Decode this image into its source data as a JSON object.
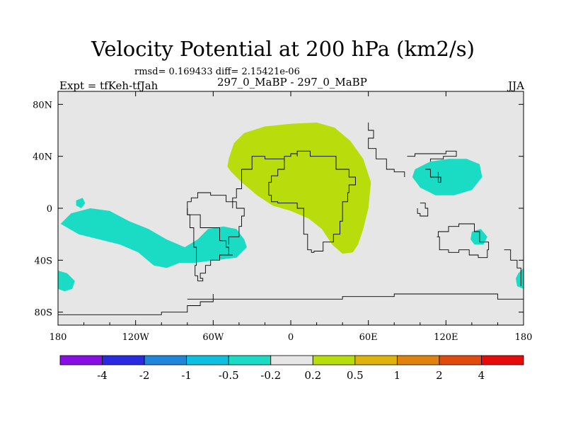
{
  "chart_data": {
    "type": "heatmap",
    "title": "Velocity Potential at 200 hPa (km2/s)",
    "stats": "rmsd= 0.169433 diff= 2.15421e-06",
    "experiment": "Expt = tfKeh-tfJah",
    "subtitle": "297_0_MaBP - 297_0_MaBP",
    "season": "JJA",
    "x_ticks": [
      {
        "value": -180,
        "label": "180"
      },
      {
        "value": -120,
        "label": "120W"
      },
      {
        "value": -60,
        "label": "60W"
      },
      {
        "value": 0,
        "label": "0"
      },
      {
        "value": 60,
        "label": "60E"
      },
      {
        "value": 120,
        "label": "120E"
      },
      {
        "value": 180,
        "label": "180"
      }
    ],
    "y_ticks": [
      {
        "value": 80,
        "label": "80N"
      },
      {
        "value": 40,
        "label": "40N"
      },
      {
        "value": 0,
        "label": "0"
      },
      {
        "value": -40,
        "label": "40S"
      },
      {
        "value": -80,
        "label": "80S"
      }
    ],
    "xlim": [
      -180,
      180
    ],
    "ylim": [
      -90,
      90
    ],
    "colorbar": {
      "colors": [
        "#8a0de6",
        "#2a2ae0",
        "#1f86da",
        "#0dbfe0",
        "#1adcc4",
        "#e6e6e6",
        "#b8dc0c",
        "#deb40c",
        "#e0820c",
        "#e04a0c",
        "#e60c0c"
      ],
      "labels": [
        "-4",
        "-2",
        "-1",
        "-0.5",
        "-0.2",
        "0.2",
        "0.5",
        "1",
        "2",
        "4"
      ]
    },
    "colors": {
      "background": "#e6e6e6",
      "positive": "#b8dc0c",
      "negative": "#1adcc4"
    },
    "regions": [
      {
        "sign": "positive",
        "lonlat": [
          [
            -48,
            38
          ],
          [
            -44,
            50
          ],
          [
            -36,
            58
          ],
          [
            -20,
            63
          ],
          [
            0,
            65
          ],
          [
            20,
            66
          ],
          [
            34,
            62
          ],
          [
            46,
            52
          ],
          [
            56,
            38
          ],
          [
            62,
            20
          ],
          [
            60,
            0
          ],
          [
            56,
            -16
          ],
          [
            52,
            -28
          ],
          [
            48,
            -34
          ],
          [
            40,
            -35
          ],
          [
            32,
            -28
          ],
          [
            24,
            -16
          ],
          [
            14,
            -8
          ],
          [
            0,
            -2
          ],
          [
            -14,
            2
          ],
          [
            -26,
            10
          ],
          [
            -38,
            20
          ],
          [
            -46,
            28
          ],
          [
            -49,
            32
          ]
        ]
      },
      {
        "sign": "negative",
        "lonlat": [
          [
            -178,
            -12
          ],
          [
            -170,
            -4
          ],
          [
            -155,
            0
          ],
          [
            -140,
            -2
          ],
          [
            -125,
            -10
          ],
          [
            -110,
            -16
          ],
          [
            -96,
            -24
          ],
          [
            -82,
            -30
          ],
          [
            -72,
            -24
          ],
          [
            -64,
            -16
          ],
          [
            -52,
            -14
          ],
          [
            -42,
            -16
          ],
          [
            -36,
            -24
          ],
          [
            -34,
            -30
          ],
          [
            -42,
            -38
          ],
          [
            -58,
            -40
          ],
          [
            -74,
            -42
          ],
          [
            -86,
            -42
          ],
          [
            -96,
            -46
          ],
          [
            -106,
            -44
          ],
          [
            -118,
            -34
          ],
          [
            -132,
            -28
          ],
          [
            -148,
            -24
          ],
          [
            -164,
            -20
          ]
        ]
      },
      {
        "sign": "negative",
        "lonlat": [
          [
            -166,
            6
          ],
          [
            -161,
            8
          ],
          [
            -159,
            4
          ],
          [
            -162,
            0
          ],
          [
            -166,
            2
          ]
        ]
      },
      {
        "sign": "negative",
        "lonlat": [
          [
            -180,
            -48
          ],
          [
            -173,
            -50
          ],
          [
            -167,
            -56
          ],
          [
            -169,
            -62
          ],
          [
            -175,
            -64
          ],
          [
            -180,
            -62
          ]
        ]
      },
      {
        "sign": "negative",
        "lonlat": [
          [
            96,
            30
          ],
          [
            108,
            36
          ],
          [
            122,
            38
          ],
          [
            136,
            38
          ],
          [
            146,
            34
          ],
          [
            148,
            24
          ],
          [
            140,
            14
          ],
          [
            126,
            10
          ],
          [
            112,
            10
          ],
          [
            100,
            16
          ],
          [
            94,
            24
          ]
        ]
      },
      {
        "sign": "negative",
        "lonlat": [
          [
            140,
            -18
          ],
          [
            147,
            -16
          ],
          [
            152,
            -22
          ],
          [
            149,
            -28
          ],
          [
            142,
            -28
          ],
          [
            139,
            -24
          ]
        ]
      },
      {
        "sign": "negative",
        "lonlat": [
          [
            176,
            -50
          ],
          [
            180,
            -46
          ],
          [
            180,
            -62
          ],
          [
            175,
            -60
          ],
          [
            174,
            -54
          ]
        ]
      }
    ],
    "coastlines": [
      [
        [
          -45,
          0
        ],
        [
          -45,
          8
        ],
        [
          -42,
          8
        ],
        [
          -42,
          15
        ],
        [
          -38,
          15
        ],
        [
          -38,
          30
        ],
        [
          -30,
          30
        ],
        [
          -30,
          40
        ],
        [
          -20,
          40
        ],
        [
          -20,
          38
        ],
        [
          -10,
          38
        ],
        [
          -5,
          40
        ],
        [
          0,
          42
        ],
        [
          5,
          40
        ],
        [
          5,
          44
        ],
        [
          15,
          44
        ],
        [
          15,
          40
        ],
        [
          30,
          40
        ],
        [
          35,
          36
        ],
        [
          35,
          30
        ],
        [
          45,
          24
        ],
        [
          50,
          18
        ],
        [
          45,
          12
        ],
        [
          44,
          5
        ],
        [
          40,
          0
        ],
        [
          40,
          -10
        ],
        [
          38,
          -20
        ],
        [
          33,
          -26
        ],
        [
          25,
          -30
        ],
        [
          25,
          -33
        ],
        [
          18,
          -34
        ],
        [
          16,
          -32
        ],
        [
          13,
          -20
        ],
        [
          10,
          -10
        ],
        [
          10,
          0
        ],
        [
          5,
          4
        ],
        [
          -5,
          4
        ],
        [
          -10,
          5
        ],
        [
          -15,
          10
        ],
        [
          -17,
          15
        ],
        [
          -17,
          20
        ],
        [
          -15,
          25
        ],
        [
          -10,
          30
        ],
        [
          -5,
          35
        ],
        [
          -5,
          38
        ]
      ]
    ],
    "coastlines_extra": [
      [
        [
          -45,
          -36
        ],
        [
          -48,
          -30
        ],
        [
          -50,
          -25
        ],
        [
          -55,
          -15
        ],
        [
          -70,
          -5
        ],
        [
          -80,
          0
        ],
        [
          -80,
          5
        ],
        [
          -77,
          8
        ],
        [
          -72,
          12
        ],
        [
          -62,
          10
        ],
        [
          -50,
          5
        ],
        [
          -42,
          0
        ],
        [
          -36,
          -6
        ],
        [
          -38,
          -14
        ],
        [
          -40,
          -22
        ],
        [
          -48,
          -28
        ]
      ],
      [
        [
          -45,
          -36
        ],
        [
          -55,
          -40
        ],
        [
          -62,
          -44
        ],
        [
          -66,
          -50
        ],
        [
          -70,
          -54
        ],
        [
          -68,
          -56
        ],
        [
          -72,
          -52
        ],
        [
          -74,
          -44
        ],
        [
          -73,
          -30
        ],
        [
          -75,
          -15
        ],
        [
          -78,
          -5
        ],
        [
          -80,
          0
        ]
      ],
      [
        [
          60,
          66
        ],
        [
          60,
          60
        ],
        [
          64,
          54
        ],
        [
          60,
          46
        ],
        [
          66,
          38
        ],
        [
          74,
          30
        ],
        [
          80,
          28
        ],
        [
          88,
          24
        ]
      ],
      [
        [
          90,
          40
        ],
        [
          96,
          42
        ],
        [
          110,
          42
        ],
        [
          120,
          44
        ],
        [
          128,
          44
        ],
        [
          128,
          40
        ],
        [
          118,
          38
        ],
        [
          108,
          36
        ]
      ],
      [
        [
          104,
          30
        ],
        [
          108,
          24
        ],
        [
          114,
          20
        ],
        [
          116,
          24
        ],
        [
          114,
          28
        ]
      ],
      [
        [
          100,
          4
        ],
        [
          104,
          0
        ],
        [
          106,
          -6
        ],
        [
          100,
          -4
        ],
        [
          98,
          0
        ]
      ],
      [
        [
          113,
          -22
        ],
        [
          115,
          -32
        ],
        [
          122,
          -34
        ],
        [
          130,
          -32
        ],
        [
          138,
          -36
        ],
        [
          145,
          -38
        ],
        [
          152,
          -32
        ],
        [
          153,
          -26
        ],
        [
          146,
          -18
        ],
        [
          142,
          -12
        ],
        [
          136,
          -12
        ],
        [
          130,
          -14
        ],
        [
          122,
          -18
        ],
        [
          114,
          -22
        ]
      ],
      [
        [
          -80,
          -70
        ],
        [
          -40,
          -70
        ],
        [
          0,
          -70
        ],
        [
          40,
          -68
        ],
        [
          80,
          -66
        ],
        [
          120,
          -66
        ],
        [
          160,
          -70
        ],
        [
          180,
          -76
        ]
      ],
      [
        [
          -180,
          -82
        ],
        [
          -140,
          -82
        ],
        [
          -100,
          -80
        ],
        [
          -80,
          -75
        ],
        [
          -70,
          -72
        ],
        [
          -60,
          -66
        ]
      ],
      [
        [
          165,
          -32
        ],
        [
          170,
          -40
        ],
        [
          175,
          -46
        ],
        [
          178,
          -52
        ],
        [
          178,
          -60
        ]
      ]
    ]
  }
}
